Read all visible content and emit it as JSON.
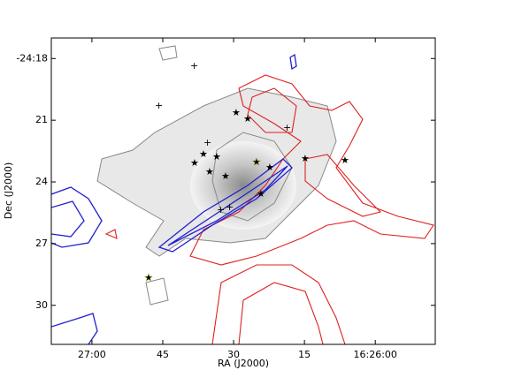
{
  "chart_data": {
    "type": "image",
    "xlabel": "RA (J2000)",
    "ylabel": "Dec (J2000)",
    "xlim": [
      1628.6,
      1547.3
    ],
    "xticks": [
      {
        "value": 1620,
        "label": "27:00"
      },
      {
        "value": 1605,
        "label": "45"
      },
      {
        "value": 1590,
        "label": "30"
      },
      {
        "value": 1575,
        "label": "15"
      },
      {
        "value": 1560,
        "label": "16:26:00"
      }
    ],
    "ylim": [
      -1471.9,
      -1457.0
    ],
    "yticks": [
      {
        "value": -1458,
        "label": "-24:18"
      },
      {
        "value": -1461,
        "label": "21"
      },
      {
        "value": -1464,
        "label": "24"
      },
      {
        "value": -1467,
        "label": "27"
      },
      {
        "value": -1470,
        "label": "30"
      }
    ]
  }
}
